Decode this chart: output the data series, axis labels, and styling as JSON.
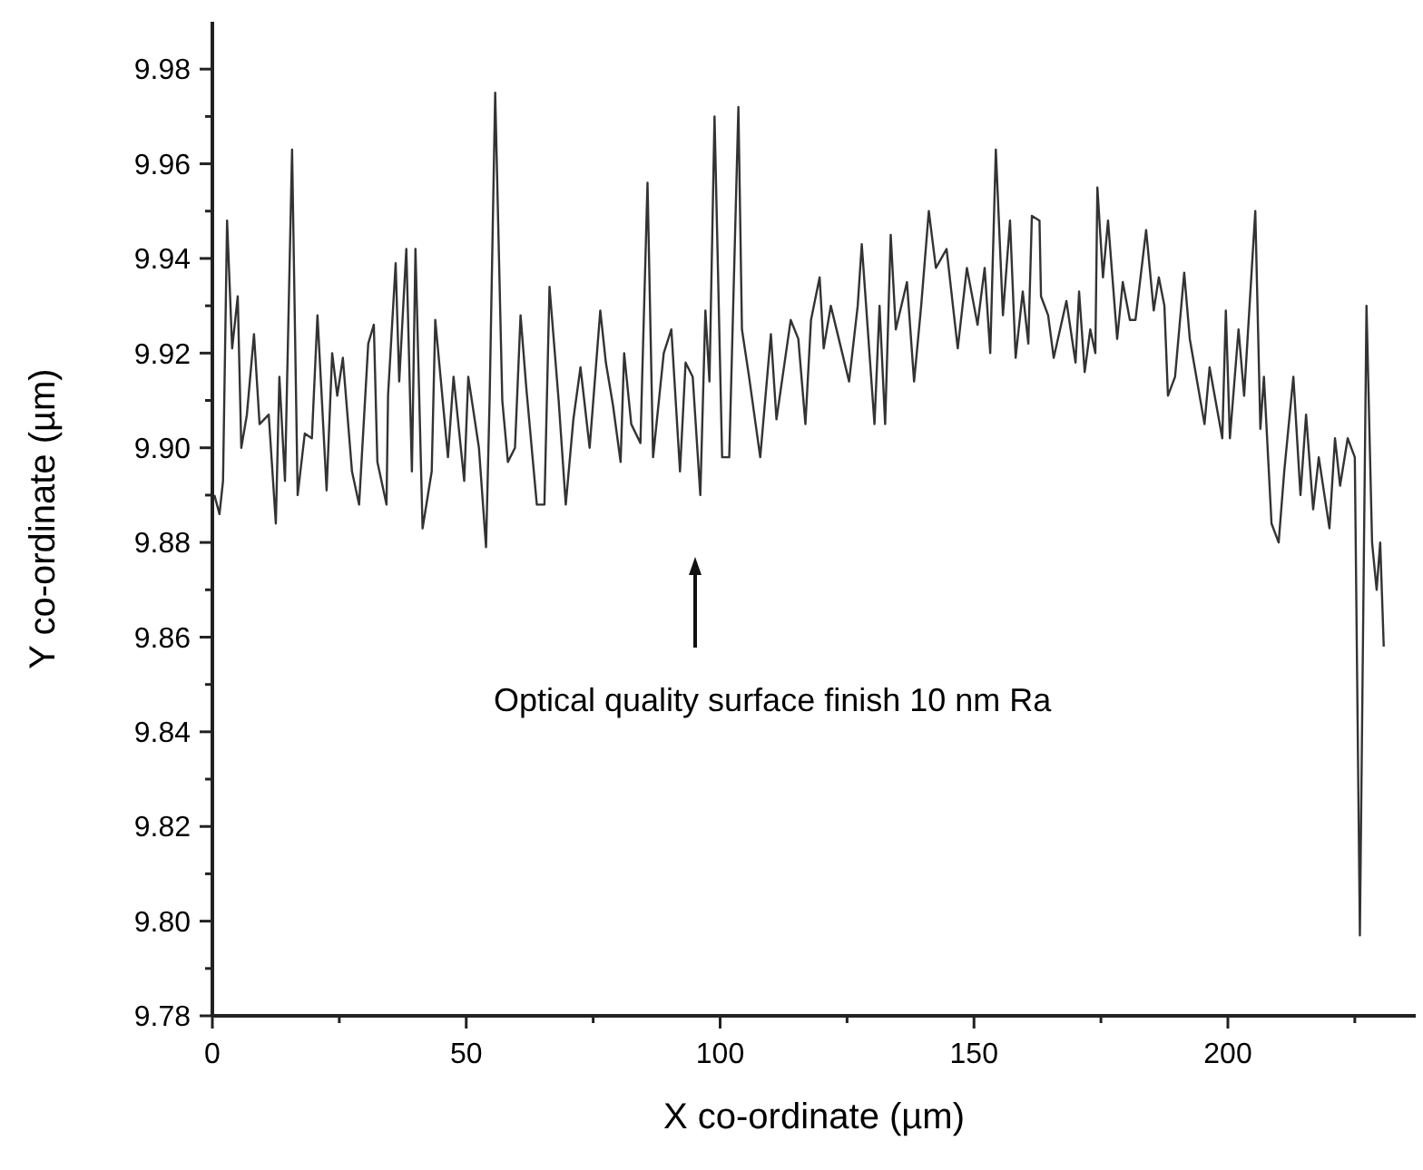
{
  "chart_data": {
    "type": "line",
    "xlabel": "X co-ordinate (µm)",
    "ylabel": "Y co-ordinate (µm)",
    "color": "#333333",
    "xlim": [
      0,
      237
    ],
    "ylim": [
      9.78,
      9.99
    ],
    "xticks": [
      0,
      {
        "value": 25,
        "label": null
      },
      50,
      {
        "value": 75,
        "label": null
      },
      100,
      {
        "value": 125,
        "label": null
      },
      150,
      {
        "value": 175,
        "label": null
      },
      200,
      {
        "value": 225,
        "label": null
      }
    ],
    "yticks": [
      9.78,
      {
        "value": 9.79,
        "label": null
      },
      {
        "value": 9.8,
        "label": "9.80"
      },
      {
        "value": 9.81,
        "label": null
      },
      9.82,
      {
        "value": 9.83,
        "label": null
      },
      9.84,
      {
        "value": 9.85,
        "label": null
      },
      9.86,
      {
        "value": 9.87,
        "label": null
      },
      9.88,
      {
        "value": 9.89,
        "label": null
      },
      {
        "value": 9.9,
        "label": "9.90"
      },
      {
        "value": 9.91,
        "label": null
      },
      9.92,
      {
        "value": 9.93,
        "label": null
      },
      9.94,
      {
        "value": 9.95,
        "label": null
      },
      9.96,
      {
        "value": 9.97,
        "label": null
      },
      9.98
    ],
    "grid": false,
    "marker": "none",
    "line_style": "solid",
    "annotations": [
      "Optical quality surface finish 10 nm Ra"
    ],
    "x": [
      0.4,
      1.4,
      2.1,
      2.9,
      3.9,
      5.0,
      5.7,
      6.8,
      8.2,
      9.3,
      11.1,
      12.5,
      13.2,
      14.3,
      15.7,
      16.8,
      18.2,
      19.6,
      20.7,
      22.5,
      23.6,
      24.6,
      25.7,
      27.5,
      28.9,
      30.7,
      31.8,
      32.5,
      34.3,
      34.6,
      36.1,
      36.8,
      38.2,
      39.3,
      40.0,
      41.4,
      43.2,
      43.9,
      46.4,
      47.5,
      49.6,
      50.4,
      52.5,
      53.9,
      54.6,
      55.7,
      57.1,
      58.2,
      59.6,
      60.7,
      61.8,
      63.9,
      65.4,
      66.4,
      68.2,
      69.6,
      71.1,
      72.5,
      74.3,
      76.4,
      77.5,
      78.9,
      80.4,
      81.1,
      82.5,
      84.3,
      85.7,
      86.8,
      88.9,
      90.4,
      92.1,
      93.2,
      94.6,
      96.1,
      97.1,
      97.9,
      98.9,
      100.4,
      101.8,
      103.6,
      104.3,
      105.7,
      107.9,
      110.0,
      111.1,
      113.9,
      115.4,
      116.8,
      117.9,
      119.6,
      120.4,
      121.8,
      125.4,
      127.1,
      127.9,
      130.4,
      131.4,
      132.5,
      133.6,
      134.6,
      136.8,
      138.2,
      139.6,
      141.1,
      142.5,
      144.6,
      146.8,
      148.6,
      150.7,
      152.1,
      153.2,
      154.3,
      155.7,
      157.1,
      158.2,
      159.6,
      160.7,
      161.4,
      162.9,
      163.2,
      164.6,
      165.7,
      168.2,
      170.0,
      170.7,
      171.8,
      172.9,
      173.9,
      174.3,
      175.4,
      176.4,
      178.2,
      179.3,
      180.7,
      181.8,
      183.9,
      185.4,
      186.4,
      187.5,
      188.2,
      189.6,
      191.4,
      192.5,
      195.4,
      196.4,
      198.9,
      199.6,
      200.4,
      202.1,
      203.2,
      205.4,
      206.4,
      207.1,
      208.6,
      210.0,
      211.1,
      212.9,
      214.3,
      215.4,
      216.8,
      217.9,
      220.0,
      221.1,
      222.1,
      223.6,
      225.0,
      226.0,
      227.3,
      228.4,
      229.3,
      230.0,
      230.7
    ],
    "values": [
      9.89,
      9.886,
      9.893,
      9.948,
      9.921,
      9.932,
      9.9,
      9.907,
      9.924,
      9.905,
      9.907,
      9.884,
      9.915,
      9.893,
      9.963,
      9.89,
      9.903,
      9.902,
      9.928,
      9.891,
      9.92,
      9.911,
      9.919,
      9.895,
      9.888,
      9.922,
      9.926,
      9.897,
      9.888,
      9.911,
      9.939,
      9.914,
      9.942,
      9.895,
      9.942,
      9.883,
      9.895,
      9.927,
      9.898,
      9.915,
      9.893,
      9.915,
      9.9,
      9.879,
      9.91,
      9.975,
      9.91,
      9.897,
      9.9,
      9.928,
      9.913,
      9.888,
      9.888,
      9.934,
      9.91,
      9.888,
      9.906,
      9.917,
      9.9,
      9.929,
      9.918,
      9.909,
      9.897,
      9.92,
      9.905,
      9.901,
      9.956,
      9.898,
      9.92,
      9.925,
      9.895,
      9.918,
      9.915,
      9.89,
      9.929,
      9.914,
      9.97,
      9.898,
      9.898,
      9.972,
      9.925,
      9.915,
      9.898,
      9.924,
      9.906,
      9.927,
      9.923,
      9.905,
      9.927,
      9.936,
      9.921,
      9.93,
      9.914,
      9.93,
      9.943,
      9.905,
      9.93,
      9.905,
      9.945,
      9.925,
      9.935,
      9.914,
      9.93,
      9.95,
      9.938,
      9.942,
      9.921,
      9.938,
      9.926,
      9.938,
      9.92,
      9.963,
      9.928,
      9.948,
      9.919,
      9.933,
      9.922,
      9.949,
      9.948,
      9.932,
      9.928,
      9.919,
      9.931,
      9.918,
      9.933,
      9.916,
      9.925,
      9.92,
      9.955,
      9.936,
      9.948,
      9.923,
      9.935,
      9.927,
      9.927,
      9.946,
      9.929,
      9.936,
      9.93,
      9.911,
      9.915,
      9.937,
      9.923,
      9.905,
      9.917,
      9.902,
      9.929,
      9.902,
      9.925,
      9.911,
      9.95,
      9.904,
      9.915,
      9.884,
      9.88,
      9.895,
      9.915,
      9.89,
      9.907,
      9.887,
      9.898,
      9.883,
      9.902,
      9.892,
      9.902,
      9.898,
      9.797,
      9.93,
      9.88,
      9.87,
      9.88,
      9.858
    ]
  }
}
